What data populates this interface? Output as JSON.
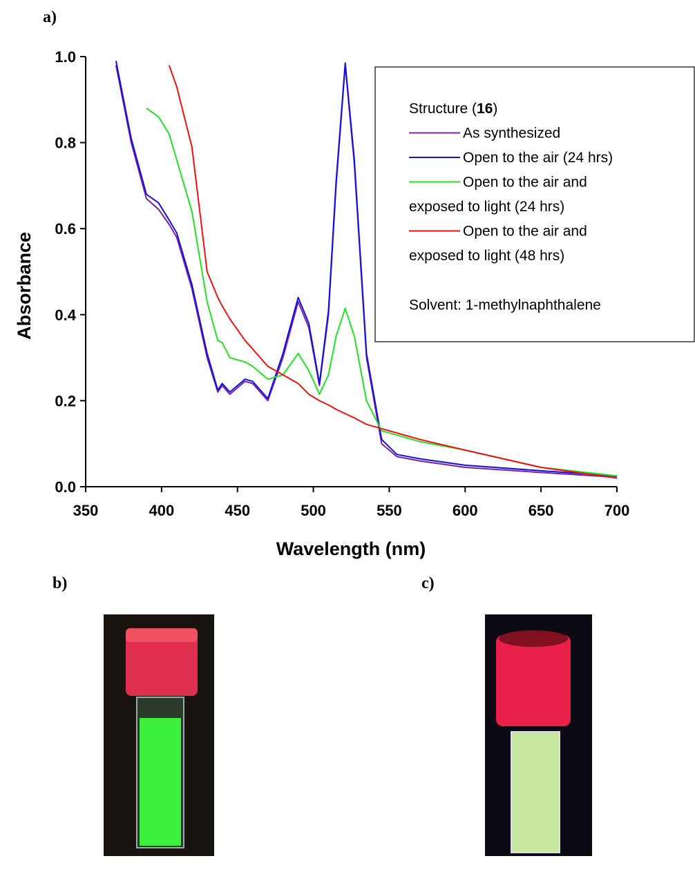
{
  "chart_data": {
    "type": "line",
    "panel_labels": [
      "a)",
      "b)",
      "c)"
    ],
    "xlabel": "Wavelength (nm)",
    "ylabel": "Absorbance",
    "xlim": [
      350,
      700
    ],
    "ylim": [
      0,
      1
    ],
    "xticks": [
      350,
      400,
      450,
      500,
      550,
      600,
      650,
      700
    ],
    "yticks": [
      {
        "value": 0,
        "label": "0.0"
      },
      0.2,
      0.4,
      0.6,
      0.8,
      {
        "value": 1,
        "label": "1.0"
      }
    ],
    "legend_title": [
      "Structure (",
      "16",
      ")"
    ],
    "annotation": "Solvent: 1-methylnaphthalene",
    "x": [
      370,
      380,
      390,
      398,
      405,
      410,
      420,
      430,
      437,
      440,
      445,
      455,
      460,
      470,
      480,
      490,
      497,
      504,
      510,
      515,
      521,
      527,
      535,
      545,
      555,
      570,
      600,
      650,
      700
    ],
    "series": [
      {
        "name": "As synthesized",
        "color": "#7b1fa2",
        "values": [
          0.98,
          0.8,
          0.67,
          0.645,
          0.61,
          0.58,
          0.46,
          0.3,
          0.22,
          0.235,
          0.215,
          0.245,
          0.24,
          0.2,
          0.3,
          0.43,
          0.37,
          0.235,
          0.4,
          0.7,
          0.98,
          0.75,
          0.3,
          0.1,
          0.07,
          0.06,
          0.045,
          0.033,
          0.022
        ]
      },
      {
        "name": "Open to the air (24 hrs)",
        "color": "#1010e0",
        "values": [
          0.99,
          0.81,
          0.68,
          0.66,
          0.62,
          0.59,
          0.47,
          0.31,
          0.225,
          0.24,
          0.22,
          0.25,
          0.245,
          0.205,
          0.31,
          0.44,
          0.38,
          0.24,
          0.41,
          0.71,
          0.985,
          0.76,
          0.31,
          0.11,
          0.075,
          0.065,
          0.05,
          0.037,
          0.025
        ]
      },
      {
        "name": "Open to the air and\nexposed to light (24 hrs)",
        "color": "#22e022",
        "values": [
          null,
          null,
          0.88,
          0.86,
          0.82,
          0.76,
          0.64,
          0.43,
          0.34,
          0.335,
          0.3,
          0.29,
          0.28,
          0.25,
          0.26,
          0.31,
          0.27,
          0.215,
          0.26,
          0.35,
          0.415,
          0.35,
          0.2,
          0.13,
          0.12,
          0.105,
          0.085,
          0.045,
          0.025
        ]
      },
      {
        "name": "Open to the air and\nexposed to light (48 hrs)",
        "color": "#ee1111",
        "values": [
          null,
          null,
          null,
          null,
          0.98,
          0.93,
          0.79,
          0.5,
          0.44,
          0.42,
          0.39,
          0.34,
          0.32,
          0.28,
          0.26,
          0.24,
          0.215,
          0.2,
          0.19,
          0.18,
          0.17,
          0.16,
          0.145,
          0.135,
          0.125,
          0.11,
          0.085,
          0.045,
          0.02
        ]
      }
    ]
  }
}
